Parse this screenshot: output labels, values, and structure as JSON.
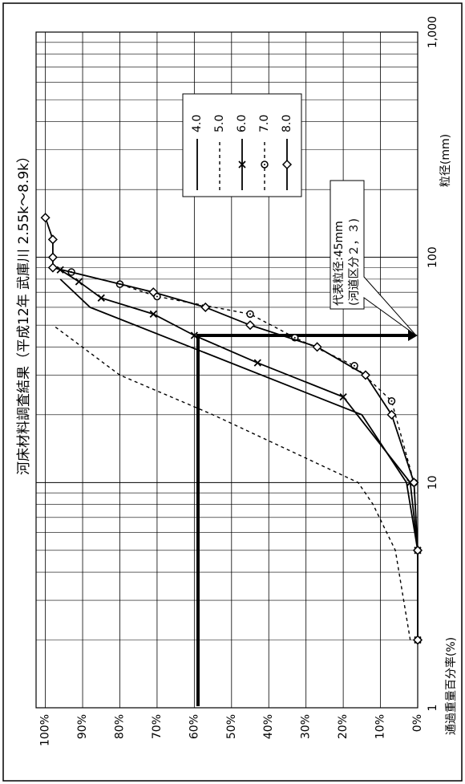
{
  "chart_data": {
    "type": "line",
    "title": "河床材料調査結果（平成12年 武庫川 2.55k～8.9k）",
    "x_label": "粒径(mm)",
    "y_label": "通過重量百分率(%)",
    "xscale": "log",
    "xlim": [
      1,
      1000
    ],
    "xticks": [
      1,
      10,
      100,
      {
        "value": 1000,
        "label": "1,000"
      }
    ],
    "ylim": [
      0,
      102.5
    ],
    "yticks": [
      {
        "value": 0,
        "label": "0%"
      },
      {
        "value": 10,
        "label": "10%"
      },
      {
        "value": 20,
        "label": "20%"
      },
      {
        "value": 30,
        "label": "30%"
      },
      {
        "value": 40,
        "label": "40%"
      },
      {
        "value": 50,
        "label": "50%"
      },
      {
        "value": 60,
        "label": "60%"
      },
      {
        "value": 70,
        "label": "70%"
      },
      {
        "value": 80,
        "label": "80%"
      },
      {
        "value": 90,
        "label": "90%"
      },
      {
        "value": 100,
        "label": "100%"
      }
    ],
    "grid": true,
    "series": [
      {
        "name": "4.0",
        "color": "#000000",
        "dash": false,
        "marker": "none",
        "x": [
          2,
          5,
          10,
          20,
          60,
          80
        ],
        "values": [
          0,
          0,
          3,
          15,
          88,
          96
        ]
      },
      {
        "name": "5.0",
        "color": "#000000",
        "dash": true,
        "marker": "none",
        "x": [
          2,
          5,
          8,
          10,
          20,
          30,
          50
        ],
        "values": [
          2,
          6,
          12,
          16,
          55,
          80,
          98
        ]
      },
      {
        "name": "6.0",
        "color": "#000000",
        "dash": false,
        "marker": "x",
        "x": [
          2,
          5,
          10,
          24,
          34,
          45,
          56,
          66,
          78,
          88
        ],
        "values": [
          0,
          0,
          2,
          20,
          43,
          60,
          71,
          85,
          91,
          96
        ]
      },
      {
        "name": "7.0",
        "color": "#000000",
        "dash": true,
        "marker": "circle",
        "x": [
          2,
          5,
          10,
          23,
          33,
          44,
          56,
          67,
          76,
          86
        ],
        "values": [
          0,
          0,
          1,
          7,
          17,
          33,
          45,
          70,
          80,
          93
        ]
      },
      {
        "name": "8.0",
        "color": "#000000",
        "dash": false,
        "marker": "diamond",
        "x": [
          2,
          5,
          10,
          20,
          30,
          40,
          50,
          60,
          70,
          90,
          100,
          120,
          150
        ],
        "values": [
          0,
          0,
          1,
          7,
          14,
          27,
          45,
          57,
          71,
          98,
          98,
          98,
          100
        ]
      }
    ],
    "reference": {
      "x": 45,
      "y": 59
    },
    "annotation": {
      "lines": [
        "代表粒径:45mm",
        "(河道区分２，３)"
      ]
    }
  }
}
